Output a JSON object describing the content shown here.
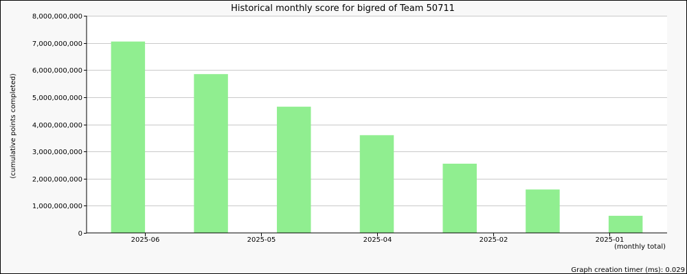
{
  "chart_data": {
    "type": "bar",
    "title": "Historical monthly score for bigred of Team 50711",
    "ylabel": "(cumulative points completed)",
    "xlabel": "(monthly total)",
    "ylim": [
      0,
      8000000000
    ],
    "yticks": [
      {
        "value": 0,
        "label": "0"
      },
      {
        "value": 1000000000,
        "label": "1,000,000,000"
      },
      {
        "value": 2000000000,
        "label": "2,000,000,000"
      },
      {
        "value": 3000000000,
        "label": "3,000,000,000"
      },
      {
        "value": 4000000000,
        "label": "4,000,000,000"
      },
      {
        "value": 5000000000,
        "label": "5,000,000,000"
      },
      {
        "value": 6000000000,
        "label": "6,000,000,000"
      },
      {
        "value": 7000000000,
        "label": "7,000,000,000"
      },
      {
        "value": 8000000000,
        "label": "8,000,000,000"
      }
    ],
    "bar_values": [
      7050000000,
      5850000000,
      4650000000,
      3600000000,
      2550000000,
      1600000000,
      630000000
    ],
    "tick_labels": [
      "2025-06",
      "2025-05",
      "2025-04",
      "2025-02",
      "2025-01"
    ],
    "bar_color": "#90ee90",
    "grid": true
  },
  "footer": {
    "timer_text": "Graph creation timer (ms): 0.029"
  }
}
